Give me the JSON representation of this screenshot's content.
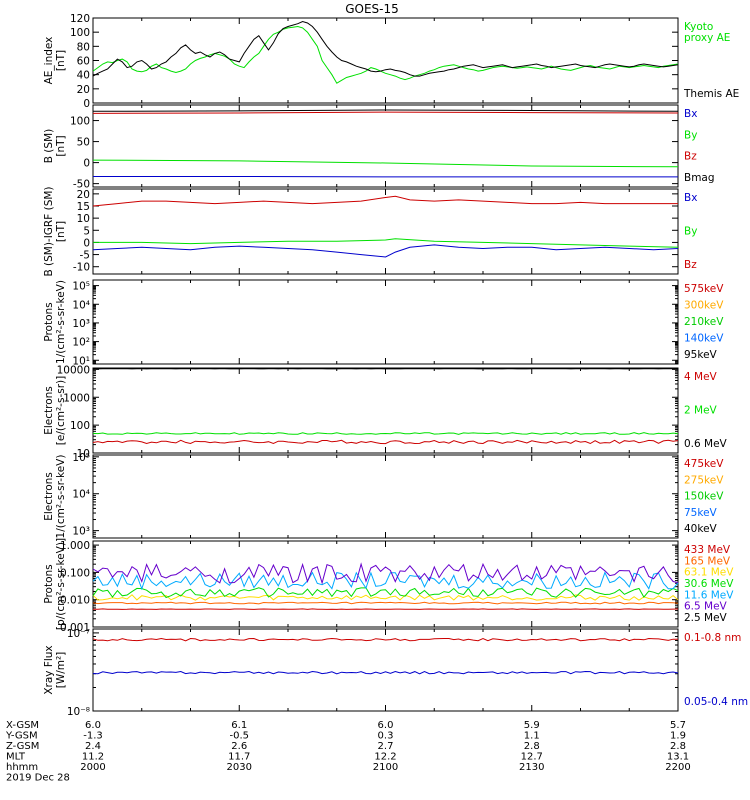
{
  "title": "GOES-15",
  "chart_data": [
    {
      "id": "ae",
      "type": "line",
      "ylabel": "AE_index\n[nT]",
      "ylim": [
        0,
        120
      ],
      "yticks": [
        "0",
        "20",
        "40",
        "60",
        "80",
        "100",
        "120"
      ],
      "tick_values": [
        0,
        20,
        40,
        60,
        80,
        100,
        120
      ],
      "scale": "linear",
      "legend_placement": "right",
      "series": [
        {
          "name": "Kyoto\nproxy AE",
          "color": "#00e000",
          "x": [
            0,
            1,
            2,
            3,
            4,
            5,
            6,
            7,
            8,
            9,
            10,
            11,
            12,
            13,
            14,
            15,
            16,
            17,
            18,
            19,
            20,
            21,
            22,
            23,
            24,
            25,
            26,
            27,
            28,
            29,
            30,
            31,
            32,
            33,
            34,
            35,
            36,
            37,
            38,
            39,
            40,
            41,
            42,
            43,
            44,
            45,
            46,
            47,
            48,
            49,
            50,
            51,
            52,
            53,
            54,
            55,
            56,
            57,
            58,
            59,
            60,
            61,
            62,
            63,
            64,
            65,
            66,
            67,
            68,
            69,
            70,
            71,
            72,
            73,
            74,
            75,
            76,
            77,
            78,
            79,
            80,
            81,
            82,
            83,
            84,
            85,
            86,
            87,
            88,
            89,
            90,
            91,
            92,
            93,
            94,
            95,
            96,
            97,
            98,
            99,
            100,
            101,
            102,
            103,
            104,
            105,
            106,
            107,
            108,
            109,
            110,
            111,
            112,
            113,
            114,
            115,
            116,
            117,
            118,
            119,
            120
          ],
          "values": [
            45,
            50,
            55,
            58,
            57,
            60,
            62,
            58,
            48,
            45,
            44,
            46,
            52,
            55,
            50,
            48,
            45,
            43,
            45,
            48,
            55,
            60,
            63,
            65,
            68,
            70,
            68,
            66,
            62,
            55,
            52,
            50,
            58,
            65,
            70,
            80,
            90,
            97,
            100,
            104,
            106,
            107,
            108,
            106,
            100,
            90,
            80,
            60,
            50,
            40,
            28,
            32,
            36,
            38,
            40,
            42,
            45,
            50,
            48,
            45,
            42,
            40,
            38,
            35,
            33,
            35,
            38,
            40,
            42,
            45,
            47,
            50,
            52,
            53,
            54,
            52,
            50,
            48,
            47,
            45,
            46,
            48,
            50,
            51,
            52,
            51,
            50,
            49,
            50,
            51,
            50,
            49,
            48,
            50,
            52,
            50,
            48,
            47,
            46,
            48,
            50,
            52,
            53,
            51,
            50,
            49,
            48,
            50,
            52,
            51,
            50,
            51,
            52,
            53,
            52,
            51,
            50,
            52,
            53,
            54,
            55
          ]
        },
        {
          "name": "Themis AE",
          "color": "#000000",
          "x": [
            0,
            1,
            2,
            3,
            4,
            5,
            6,
            7,
            8,
            9,
            10,
            11,
            12,
            13,
            14,
            15,
            16,
            17,
            18,
            19,
            20,
            21,
            22,
            23,
            24,
            25,
            26,
            27,
            28,
            29,
            30,
            31,
            32,
            33,
            34,
            35,
            36,
            37,
            38,
            39,
            40,
            41,
            42,
            43,
            44,
            45,
            46,
            47,
            48,
            49,
            50,
            51,
            52,
            53,
            54,
            55,
            56,
            57,
            58,
            59,
            60,
            61,
            62,
            63,
            64,
            65,
            66,
            67,
            68,
            69,
            70,
            71,
            72,
            73,
            74,
            75,
            76,
            77,
            78,
            79,
            80,
            81,
            82,
            83,
            84,
            85,
            86,
            87,
            88,
            89,
            90,
            91,
            92,
            93,
            94,
            95,
            96,
            97,
            98,
            99,
            100,
            101,
            102,
            103,
            104,
            105,
            106,
            107,
            108,
            109,
            110,
            111,
            112,
            113,
            114,
            115,
            116,
            117,
            118,
            119,
            120
          ],
          "values": [
            38,
            42,
            45,
            48,
            55,
            62,
            58,
            50,
            52,
            58,
            60,
            55,
            48,
            50,
            55,
            58,
            65,
            70,
            78,
            82,
            75,
            70,
            72,
            68,
            65,
            70,
            72,
            68,
            62,
            60,
            58,
            70,
            80,
            90,
            95,
            85,
            75,
            85,
            98,
            105,
            108,
            110,
            112,
            115,
            113,
            108,
            100,
            90,
            80,
            72,
            65,
            60,
            58,
            55,
            52,
            50,
            48,
            45,
            44,
            45,
            47,
            48,
            46,
            45,
            43,
            40,
            38,
            38,
            40,
            42,
            43,
            44,
            45,
            47,
            48,
            50,
            52,
            53,
            54,
            52,
            50,
            51,
            52,
            53,
            54,
            52,
            50,
            51,
            52,
            53,
            54,
            55,
            53,
            52,
            50,
            51,
            52,
            53,
            54,
            55,
            53,
            52,
            51,
            50,
            52,
            54,
            55,
            54,
            53,
            52,
            51,
            52,
            54,
            55,
            54,
            53,
            52,
            51,
            52,
            53,
            54
          ]
        }
      ]
    },
    {
      "id": "bsm",
      "type": "line",
      "ylabel": "B (SM)\n[nT]",
      "ylim": [
        -58,
        137
      ],
      "yticks": [
        "-50",
        "0",
        "50",
        "100"
      ],
      "tick_values": [
        -50,
        0,
        50,
        100
      ],
      "scale": "linear",
      "legend_placement": "right",
      "series": [
        {
          "name": "Bx",
          "color": "#0000cc",
          "x": [
            0,
            30,
            60,
            90,
            120
          ],
          "values": [
            -33,
            -33,
            -34,
            -34,
            -34
          ]
        },
        {
          "name": "By",
          "color": "#00e000",
          "x": [
            0,
            30,
            60,
            90,
            120
          ],
          "values": [
            6,
            4,
            -1,
            -8,
            -10
          ]
        },
        {
          "name": "Bz",
          "color": "#cc0000",
          "x": [
            0,
            30,
            60,
            90,
            120
          ],
          "values": [
            117,
            118,
            120,
            119,
            118
          ]
        },
        {
          "name": "Bmag",
          "color": "#000000",
          "x": [
            0,
            30,
            60,
            90,
            120
          ],
          "values": [
            122,
            123,
            125,
            124,
            122
          ]
        }
      ]
    },
    {
      "id": "bigrf",
      "type": "line",
      "ylabel": "B (SM)-IGRF (SM)\n[nT]",
      "ylim": [
        -13,
        22
      ],
      "yticks": [
        "-10",
        "-5",
        "0",
        "5",
        "10",
        "15",
        "20"
      ],
      "tick_values": [
        -10,
        -5,
        0,
        5,
        10,
        15,
        20
      ],
      "scale": "linear",
      "legend_placement": "right",
      "series": [
        {
          "name": "Bx",
          "color": "#0000cc",
          "x": [
            0,
            5,
            10,
            15,
            20,
            25,
            30,
            35,
            40,
            45,
            50,
            55,
            60,
            62,
            65,
            70,
            75,
            80,
            85,
            90,
            95,
            100,
            105,
            110,
            115,
            120
          ],
          "values": [
            -3,
            -2.5,
            -2,
            -2.5,
            -3,
            -2,
            -1.5,
            -2,
            -2.5,
            -3,
            -4,
            -5,
            -6,
            -4,
            -2,
            -1,
            -2,
            -2.5,
            -2,
            -2,
            -3,
            -2.5,
            -2,
            -2.5,
            -3,
            -2.5
          ]
        },
        {
          "name": "By",
          "color": "#00e000",
          "x": [
            0,
            10,
            20,
            30,
            40,
            50,
            60,
            62,
            70,
            80,
            90,
            100,
            110,
            120
          ],
          "values": [
            0,
            0,
            -0.5,
            0,
            0.5,
            0.5,
            1,
            1.5,
            0.5,
            0,
            -0.5,
            -1,
            -1.5,
            -2
          ]
        },
        {
          "name": "Bz",
          "color": "#cc0000",
          "x": [
            0,
            5,
            10,
            15,
            20,
            25,
            30,
            35,
            40,
            45,
            50,
            55,
            60,
            62,
            65,
            70,
            75,
            80,
            85,
            90,
            95,
            100,
            105,
            110,
            115,
            120
          ],
          "values": [
            15,
            16,
            17,
            17,
            16.5,
            16,
            16.5,
            17,
            16.5,
            16,
            16.5,
            17,
            18.5,
            19,
            17.5,
            17,
            17.5,
            17,
            16.5,
            16,
            16,
            16.5,
            16,
            16,
            16,
            16
          ]
        }
      ]
    },
    {
      "id": "protons-e",
      "type": "line",
      "ylabel": "Protons\n1/(cm²-s-sr-keV)",
      "ylim_log10": [
        0.8,
        5.3
      ],
      "yticks": [
        "10¹",
        "10²",
        "10³",
        "10⁴",
        "10⁵"
      ],
      "tick_values": [
        1,
        2,
        3,
        4,
        5
      ],
      "scale": "log",
      "legend_placement": "right",
      "series": [
        {
          "name": "575keV",
          "color": "#cc0000",
          "values": []
        },
        {
          "name": "300keV",
          "color": "#ffaa00",
          "values": []
        },
        {
          "name": "210keV",
          "color": "#00cc00",
          "values": []
        },
        {
          "name": "140keV",
          "color": "#0066ff",
          "values": []
        },
        {
          "name": "95keV",
          "color": "#000000",
          "values": []
        }
      ]
    },
    {
      "id": "electrons-mev",
      "type": "line",
      "ylabel": "Electrons\n[e/(cm²-s-sr)]",
      "ylim_log10": [
        1,
        4.05
      ],
      "yticks": [
        "10",
        "100",
        "1000",
        "10000"
      ],
      "tick_values": [
        1,
        2,
        3,
        4
      ],
      "scale": "log",
      "legend_placement": "right",
      "series": [
        {
          "name": "4 MeV",
          "color": "#cc0000",
          "mean": 25,
          "jitter": 0.06
        },
        {
          "name": "2 MeV",
          "color": "#00e000",
          "mean": 50,
          "jitter": 0.03
        },
        {
          "name": "0.6 MeV",
          "color": "#000000",
          "mean": 10500,
          "jitter": 0.005
        }
      ]
    },
    {
      "id": "electrons-kev",
      "type": "line",
      "ylabel": "Electrons\n1/(cm²-s-sr-keV)",
      "ylim_log10": [
        2.8,
        5.05
      ],
      "yticks": [
        "10³",
        "10⁴",
        "10⁵"
      ],
      "tick_values": [
        3,
        4,
        5
      ],
      "scale": "log",
      "legend_placement": "right",
      "series": [
        {
          "name": "475keV",
          "color": "#cc0000",
          "values": []
        },
        {
          "name": "275keV",
          "color": "#ffaa00",
          "values": []
        },
        {
          "name": "150keV",
          "color": "#00cc00",
          "values": []
        },
        {
          "name": "75keV",
          "color": "#0066ff",
          "values": []
        },
        {
          "name": "40keV",
          "color": "#000000",
          "values": []
        }
      ]
    },
    {
      "id": "protons-mev",
      "type": "line",
      "ylabel": "Protons\n[p/(cm²-s-sr-keV)]",
      "ylim_log10": [
        -3,
        0.15
      ],
      "yticks": [
        "0.001",
        "0.010",
        "0.100",
        "1.000",
        "10.000"
      ],
      "tick_values": [
        -3,
        -2,
        -1,
        0,
        1
      ],
      "scale": "log",
      "legend_placement": "right",
      "series": [
        {
          "name": "433 MeV",
          "color": "#cc0000",
          "mean": 0.0045,
          "jitter": 0.01
        },
        {
          "name": "165 MeV",
          "color": "#ff6600",
          "mean": 0.0075,
          "jitter": 0.03
        },
        {
          "name": "63.1 MeV",
          "color": "#ffdd00",
          "mean": 0.012,
          "jitter": 0.1
        },
        {
          "name": "30.6 MeV",
          "color": "#00dd00",
          "mean": 0.018,
          "jitter": 0.18
        },
        {
          "name": "11.6 MeV",
          "color": "#00aaff",
          "mean": 0.05,
          "jitter": 0.3
        },
        {
          "name": "6.5 MeV",
          "color": "#6600cc",
          "mean": 0.09,
          "jitter": 0.35
        },
        {
          "name": "2.5 MeV",
          "color": "#000000",
          "mean": 10000,
          "jitter": 0.005
        }
      ]
    },
    {
      "id": "xray",
      "type": "line",
      "ylabel": "Xray Flux\n[W/m²]",
      "ylim_log10": [
        -8,
        -6.95
      ],
      "yticks": [
        "10⁻⁸",
        "10⁻⁷"
      ],
      "tick_values": [
        -8,
        -7
      ],
      "scale": "log",
      "legend_placement": "right",
      "series": [
        {
          "name": "0.1-0.8 nm",
          "color": "#cc0000",
          "mean": 8.2e-08,
          "jitter": 0.015
        },
        {
          "name": "0.05-0.4 nm",
          "color": "#0000cc",
          "mean": 3.1e-08,
          "jitter": 0.015
        }
      ]
    }
  ],
  "x_axis": {
    "rows": [
      {
        "label": "X-GSM",
        "values": [
          "6.0",
          "6.1",
          "6.0",
          "5.9",
          "5.7"
        ]
      },
      {
        "label": "Y-GSM",
        "values": [
          "-1.3",
          "-0.5",
          "0.3",
          "1.1",
          "1.9"
        ]
      },
      {
        "label": "Z-GSM",
        "values": [
          "2.4",
          "2.6",
          "2.7",
          "2.8",
          "2.8"
        ]
      },
      {
        "label": "MLT",
        "values": [
          "11.2",
          "11.7",
          "12.2",
          "12.7",
          "13.1"
        ]
      },
      {
        "label": "hhmm",
        "values": [
          "2000",
          "2030",
          "2100",
          "2130",
          "2200"
        ]
      }
    ],
    "date": "2019 Dec 28"
  }
}
